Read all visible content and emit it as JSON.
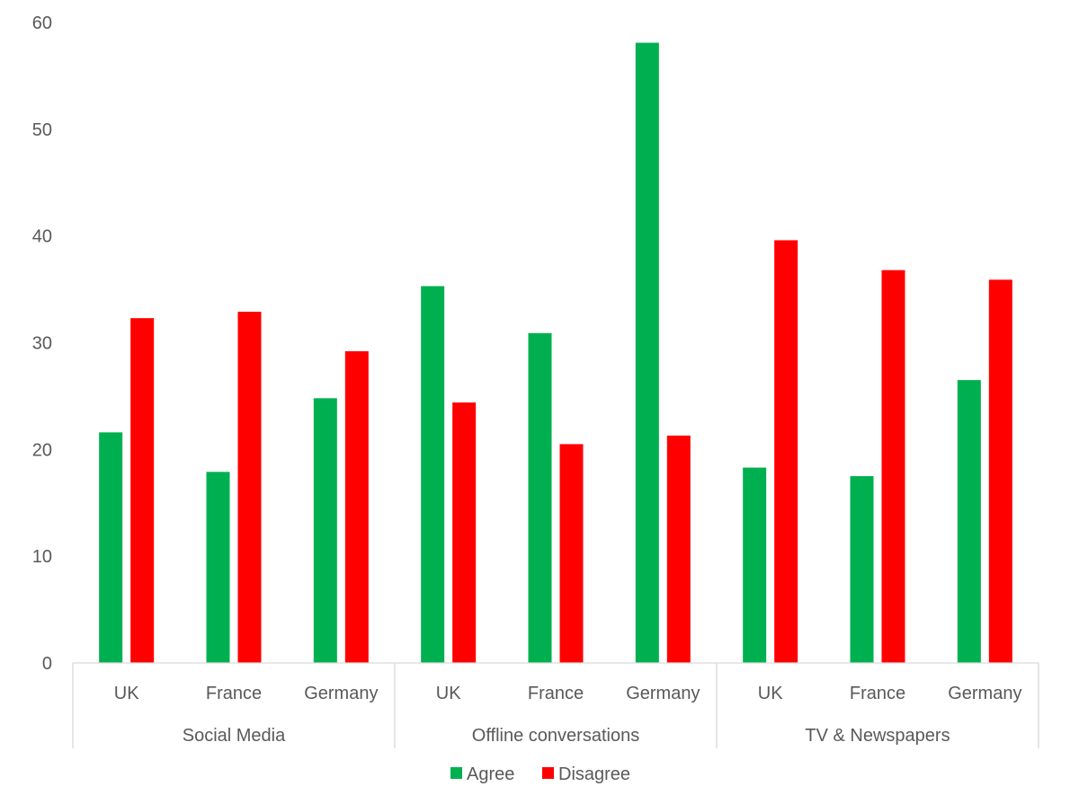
{
  "chart_data": {
    "type": "bar",
    "title": "",
    "xlabel": "",
    "ylabel": "",
    "ylim": [
      0,
      60
    ],
    "yticks": [
      0,
      10,
      20,
      30,
      40,
      50,
      60
    ],
    "grid": false,
    "legend_position": "bottom-center",
    "groups": [
      {
        "label": "Social Media",
        "countries": [
          "UK",
          "France",
          "Germany"
        ]
      },
      {
        "label": "Offline conversations",
        "countries": [
          "UK",
          "France",
          "Germany"
        ]
      },
      {
        "label": "TV & Newspapers",
        "countries": [
          "UK",
          "France",
          "Germany"
        ]
      }
    ],
    "series": [
      {
        "name": "Agree",
        "color": "#00B050",
        "values": [
          21.6,
          17.9,
          24.8,
          35.3,
          30.9,
          58.1,
          18.3,
          17.5,
          26.5
        ]
      },
      {
        "name": "Disagree",
        "color": "#FF0000",
        "values": [
          32.3,
          32.9,
          29.2,
          24.4,
          20.5,
          21.3,
          39.6,
          36.8,
          35.9
        ]
      }
    ]
  }
}
